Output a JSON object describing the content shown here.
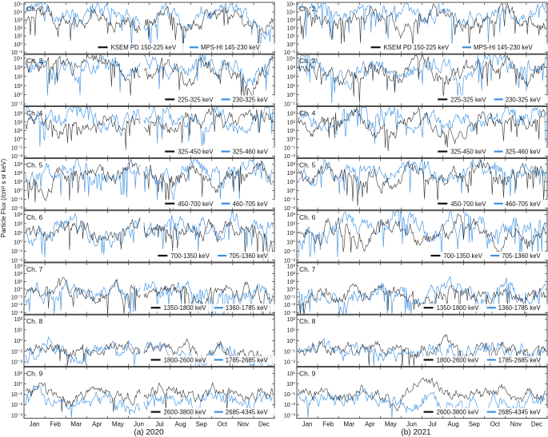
{
  "y_axis_label": "Particle Flux (/cm² s sr keV)",
  "months": [
    "Jan",
    "Feb",
    "Mar",
    "Apr",
    "May",
    "Jun",
    "Jul",
    "Aug",
    "Sep",
    "Oct",
    "Nov",
    "Dec"
  ],
  "colors": {
    "ksem": "#111111",
    "mps": "#3a8fe0"
  },
  "columns": [
    {
      "caption": "(a) 2020",
      "gap_after_month": 5.6
    },
    {
      "caption": "(b) 2021",
      "gap_after_month": null
    }
  ],
  "rows": [
    {
      "channel": "Ch. 2",
      "ksem_legend": "KSEM PD   150-225 keV",
      "mps_legend": "MPS-HI   145-230 keV",
      "ticks": [
        {
          "v": -1,
          "label": "10⁻¹"
        },
        {
          "v": 0,
          "label": "10⁰"
        },
        {
          "v": 1,
          "label": "10¹"
        },
        {
          "v": 2,
          "label": "10²"
        },
        {
          "v": 3,
          "label": "10³"
        },
        {
          "v": 4,
          "label": "10⁴"
        },
        {
          "v": 5,
          "label": "10⁵"
        }
      ],
      "ylim": [
        -1.2,
        5.2
      ],
      "level": [
        3.0,
        3.6
      ]
    },
    {
      "channel": "Ch. 3",
      "ksem_legend": "225-325 keV",
      "mps_legend": "230-325 keV",
      "ticks": [
        {
          "v": -1,
          "label": "10⁻¹"
        },
        {
          "v": 0,
          "label": "10⁰"
        },
        {
          "v": 1,
          "label": "10¹"
        },
        {
          "v": 2,
          "label": "10²"
        },
        {
          "v": 3,
          "label": "10³"
        },
        {
          "v": 4,
          "label": "10⁴"
        }
      ],
      "ylim": [
        -1.2,
        4.4
      ],
      "level": [
        2.6,
        3.0
      ]
    },
    {
      "channel": "Ch. 4",
      "ksem_legend": "325-450 keV",
      "mps_legend": "325-460 keV",
      "ticks": [
        {
          "v": -2,
          "label": "10⁻²"
        },
        {
          "v": -1,
          "label": "10⁻¹"
        },
        {
          "v": 0,
          "label": "10⁰"
        },
        {
          "v": 1,
          "label": "10¹"
        },
        {
          "v": 2,
          "label": "10²"
        },
        {
          "v": 3,
          "label": "10³"
        }
      ],
      "ylim": [
        -2.2,
        3.8
      ],
      "level": [
        2.0,
        2.4
      ]
    },
    {
      "channel": "Ch. 5",
      "ksem_legend": "450-700 keV",
      "mps_legend": "460-705 keV",
      "ticks": [
        {
          "v": -2,
          "label": "10⁻²"
        },
        {
          "v": -1,
          "label": "10⁻¹"
        },
        {
          "v": 0,
          "label": "10⁰"
        },
        {
          "v": 1,
          "label": "10¹"
        },
        {
          "v": 2,
          "label": "10²"
        },
        {
          "v": 3,
          "label": "10³"
        }
      ],
      "ylim": [
        -2.2,
        3.6
      ],
      "level": [
        1.6,
        2.0
      ]
    },
    {
      "channel": "Ch. 6",
      "ksem_legend": "700-1350 keV",
      "mps_legend": "705-1360 keV",
      "ticks": [
        {
          "v": -2,
          "label": "10⁻²"
        },
        {
          "v": -1,
          "label": "10⁻¹"
        },
        {
          "v": 0,
          "label": "10⁰"
        },
        {
          "v": 1,
          "label": "10¹"
        },
        {
          "v": 2,
          "label": "10²"
        },
        {
          "v": 3,
          "label": "10³"
        }
      ],
      "ylim": [
        -2.2,
        3.4
      ],
      "level": [
        1.0,
        1.6
      ]
    },
    {
      "channel": "Ch. 7",
      "ksem_legend": "1350-1800 keV",
      "mps_legend": "1360-1785 keV",
      "ticks": [
        {
          "v": -3,
          "label": "10⁻³"
        },
        {
          "v": -2,
          "label": "10⁻²"
        },
        {
          "v": -1,
          "label": "10⁻¹"
        },
        {
          "v": 0,
          "label": "10⁰"
        },
        {
          "v": 1,
          "label": "10¹"
        },
        {
          "v": 2,
          "label": "10²"
        },
        {
          "v": 3,
          "label": "10³"
        }
      ],
      "ylim": [
        -3.2,
        3.4
      ],
      "level": [
        -0.6,
        -0.5
      ]
    },
    {
      "channel": "Ch. 8",
      "ksem_legend": "1800-2600 keV",
      "mps_legend": "1785-2685 keV",
      "ticks": [
        {
          "v": -2,
          "label": "10⁻²"
        },
        {
          "v": -1,
          "label": "10⁻¹"
        },
        {
          "v": 0,
          "label": "10⁰"
        },
        {
          "v": 1,
          "label": "10¹"
        },
        {
          "v": 2,
          "label": "10²"
        }
      ],
      "ylim": [
        -2.4,
        2.4
      ],
      "level": [
        -0.9,
        -1.0
      ]
    },
    {
      "channel": "Ch. 9",
      "ksem_legend": "2600-3800 keV",
      "mps_legend": "2685-4345 keV",
      "ticks": [
        {
          "v": -3,
          "label": "10⁻³"
        },
        {
          "v": -2,
          "label": "10⁻²"
        },
        {
          "v": -1,
          "label": "10⁻¹"
        },
        {
          "v": 0,
          "label": "10⁰"
        },
        {
          "v": 1,
          "label": "10¹"
        }
      ],
      "ylim": [
        -3.3,
        1.6
      ],
      "level": [
        -0.9,
        -1.7
      ]
    }
  ],
  "chart_data": {
    "type": "line",
    "note_scale": "log",
    "x_categories": [
      "Jan",
      "Feb",
      "Mar",
      "Apr",
      "May",
      "Jun",
      "Jul",
      "Aug",
      "Sep",
      "Oct",
      "Nov",
      "Dec"
    ],
    "series": [
      {
        "name": "KSEM PD"
      },
      {
        "name": "MPS-HI"
      }
    ]
  }
}
